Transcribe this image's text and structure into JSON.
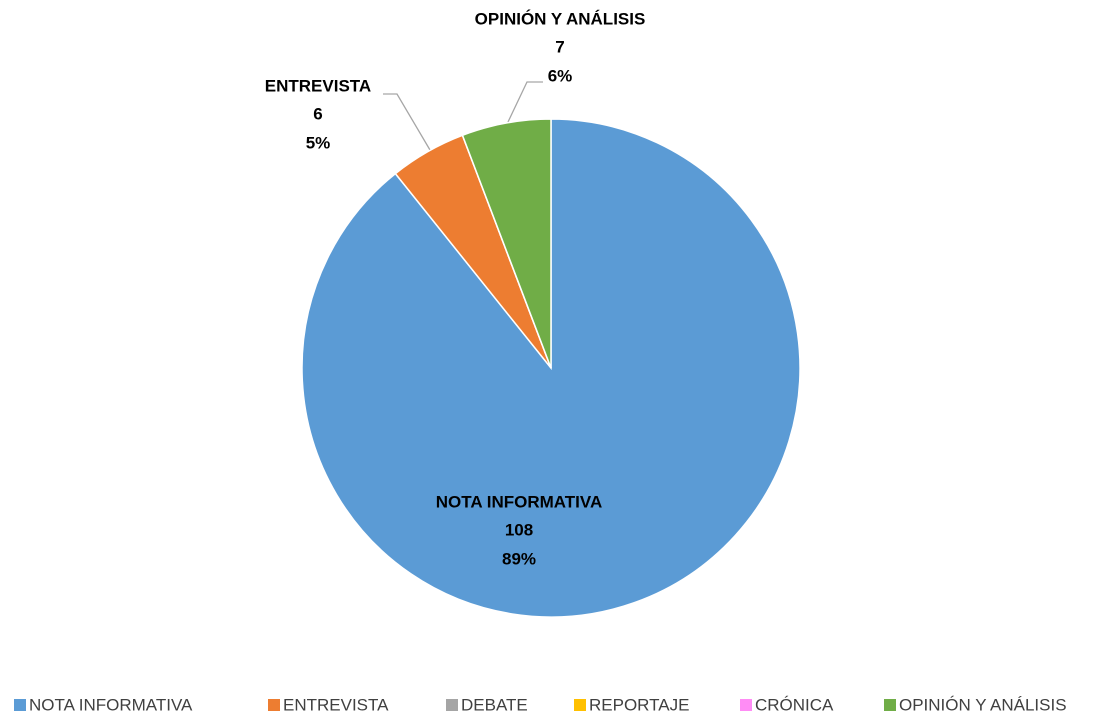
{
  "chart_data": {
    "type": "pie",
    "categories": [
      "NOTA INFORMATIVA",
      "ENTREVISTA",
      "DEBATE",
      "REPORTAJE",
      "CRÓNICA",
      "OPINIÓN Y ANÁLISIS"
    ],
    "values": [
      108,
      6,
      0,
      0,
      0,
      7
    ],
    "percent_labels": [
      "89%",
      "5%",
      null,
      null,
      null,
      "6%"
    ],
    "colors": [
      "#5b9bd5",
      "#ed7d31",
      "#a5a5a5",
      "#ffc000",
      "#ff8cf5",
      "#70ad47"
    ],
    "legend": "bottom"
  }
}
